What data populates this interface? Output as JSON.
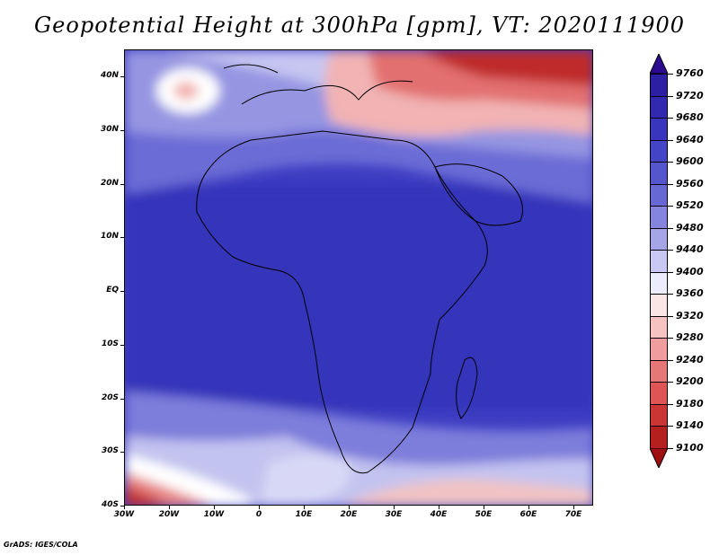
{
  "title": "Geopotential Height at 300hPa [gpm], VT: 2020111900",
  "footer": "GrADS: IGES/COLA",
  "map": {
    "region": "Africa",
    "variable": "Geopotential Height at 300hPa",
    "units": "gpm",
    "lat_ticks": [
      "40N",
      "30N",
      "20N",
      "10N",
      "EQ",
      "10S",
      "20S",
      "30S",
      "40S"
    ],
    "lon_ticks": [
      "30W",
      "20W",
      "10W",
      "0",
      "10E",
      "20E",
      "30E",
      "40E",
      "50E",
      "60E",
      "70E"
    ]
  },
  "colorbar": {
    "labels": [
      "9760",
      "9720",
      "9680",
      "9640",
      "9600",
      "9560",
      "9520",
      "9480",
      "9440",
      "9400",
      "9360",
      "9320",
      "9280",
      "9240",
      "9200",
      "9180",
      "9140",
      "9100"
    ],
    "colors": [
      "#2b0a8f",
      "#2d1fa3",
      "#3329b0",
      "#3a35bd",
      "#4444c6",
      "#5555cc",
      "#6868d4",
      "#8585dd",
      "#a5a5e8",
      "#c8c8f2",
      "#ececfb",
      "#fbe6e6",
      "#f6c2c2",
      "#ef9d9d",
      "#e67777",
      "#dd5555",
      "#cc3535",
      "#b51f1f",
      "#9e0f0f"
    ]
  }
}
